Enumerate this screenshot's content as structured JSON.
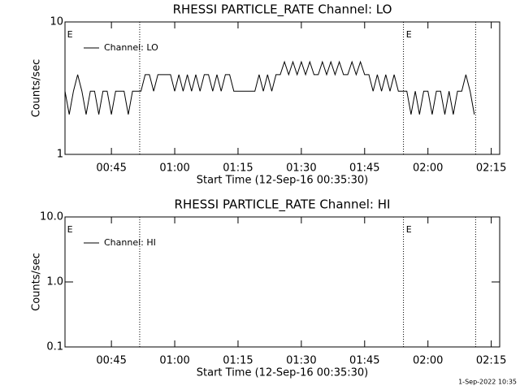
{
  "chart_data": [
    {
      "type": "line",
      "title": "RHESSI PARTICLE_RATE Channel: LO",
      "x_label": "Start Time (12-Sep-16 00:35:30)",
      "y_label": "Counts/sec",
      "log_y": true,
      "legend": "upper left",
      "color": "#000000",
      "xlim": [
        34,
        137
      ],
      "ylim": [
        1,
        10
      ],
      "xticks": [
        {
          "value": 45,
          "label": "00:45"
        },
        {
          "value": 60,
          "label": "01:00"
        },
        {
          "value": 75,
          "label": "01:15"
        },
        {
          "value": 90,
          "label": "01:30"
        },
        {
          "value": 105,
          "label": "01:45"
        },
        {
          "value": 120,
          "label": "02:00"
        },
        {
          "value": 135,
          "label": "02:15"
        }
      ],
      "yticks": [
        1,
        10
      ],
      "vlines": [
        51.7,
        114.2,
        131.3
      ],
      "annotations": [
        {
          "text": "E",
          "x": 34.5
        },
        {
          "text": "E",
          "x": 114.8
        }
      ],
      "series": [
        {
          "name": "Channel: LO",
          "color": "#000000",
          "x": [
            34,
            35,
            36,
            37,
            38,
            39,
            40,
            41,
            42,
            43,
            44,
            45,
            46,
            47,
            48,
            49,
            50,
            51,
            52,
            53,
            54,
            55,
            56,
            57,
            58,
            59,
            60,
            61,
            62,
            63,
            64,
            65,
            66,
            67,
            68,
            69,
            70,
            71,
            72,
            73,
            74,
            75,
            76,
            77,
            78,
            79,
            80,
            81,
            82,
            83,
            84,
            85,
            86,
            87,
            88,
            89,
            90,
            91,
            92,
            93,
            94,
            95,
            96,
            97,
            98,
            99,
            100,
            101,
            102,
            103,
            104,
            105,
            106,
            107,
            108,
            109,
            110,
            111,
            112,
            113,
            114,
            115,
            116,
            117,
            118,
            119,
            120,
            121,
            122,
            123,
            124,
            125,
            126,
            127,
            128,
            129,
            130,
            131
          ],
          "values": [
            3,
            2,
            3,
            4,
            3,
            2,
            3,
            3,
            2,
            3,
            3,
            2,
            3,
            3,
            3,
            2,
            3,
            3,
            3,
            4,
            4,
            3,
            4,
            4,
            4,
            4,
            3,
            4,
            3,
            4,
            3,
            4,
            3,
            4,
            4,
            3,
            4,
            3,
            4,
            4,
            3,
            3,
            3,
            3,
            3,
            3,
            4,
            3,
            4,
            3,
            4,
            4,
            5,
            4,
            5,
            4,
            5,
            4,
            5,
            4,
            4,
            5,
            4,
            5,
            4,
            5,
            4,
            4,
            5,
            4,
            5,
            4,
            4,
            3,
            4,
            3,
            4,
            3,
            4,
            3,
            3,
            3,
            2,
            3,
            2,
            3,
            3,
            2,
            3,
            3,
            2,
            3,
            2,
            3,
            3,
            4,
            3,
            2
          ]
        }
      ]
    },
    {
      "type": "line",
      "title": "RHESSI PARTICLE_RATE Channel: HI",
      "x_label": "Start Time (12-Sep-16 00:35:30)",
      "y_label": "Counts/sec",
      "log_y": true,
      "legend": "upper left",
      "color": "#000000",
      "xlim": [
        34,
        137
      ],
      "ylim": [
        0.1,
        10
      ],
      "xticks": [
        {
          "value": 45,
          "label": "00:45"
        },
        {
          "value": 60,
          "label": "01:00"
        },
        {
          "value": 75,
          "label": "01:15"
        },
        {
          "value": 90,
          "label": "01:30"
        },
        {
          "value": 105,
          "label": "01:45"
        },
        {
          "value": 120,
          "label": "02:00"
        },
        {
          "value": 135,
          "label": "02:15"
        }
      ],
      "yticks": [
        {
          "value": 0.1,
          "label": "0.1"
        },
        {
          "value": 1,
          "label": "1.0"
        },
        {
          "value": 10,
          "label": "10.0"
        }
      ],
      "vlines": [
        51.7,
        114.2,
        131.3
      ],
      "annotations": [
        {
          "text": "E",
          "x": 34.5
        },
        {
          "text": "E",
          "x": 114.8
        }
      ],
      "series": [
        {
          "name": "Channel: HI",
          "color": "#000000",
          "x": [],
          "values": []
        }
      ]
    }
  ],
  "footer": "1-Sep-2022 10:35"
}
